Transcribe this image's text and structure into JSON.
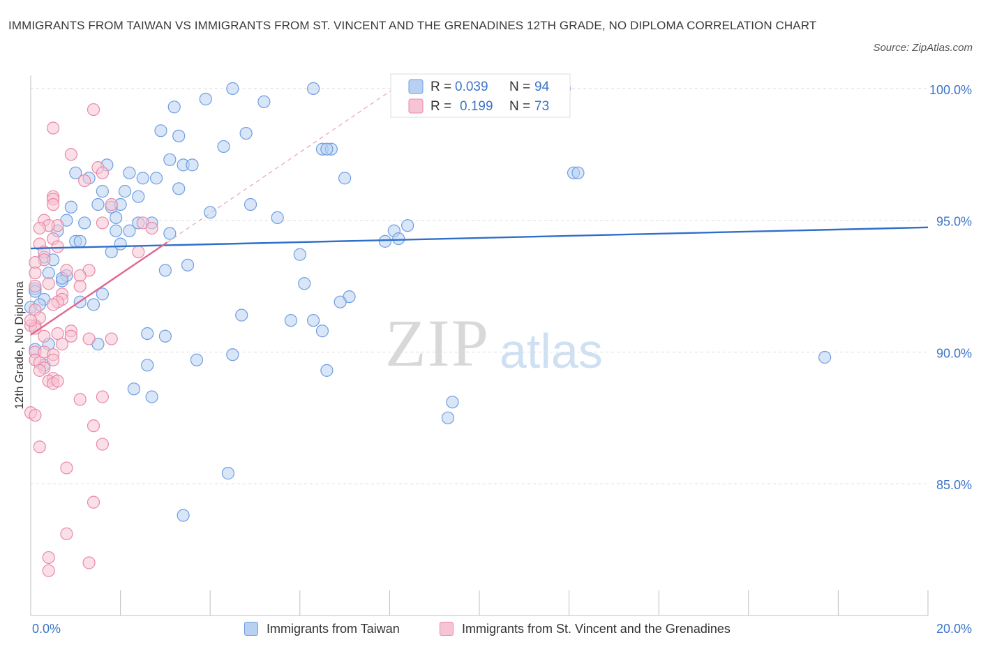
{
  "title": "IMMIGRANTS FROM TAIWAN VS IMMIGRANTS FROM ST. VINCENT AND THE GRENADINES 12TH GRADE, NO DIPLOMA CORRELATION CHART",
  "source": "Source: ZipAtlas.com",
  "colors": {
    "blue_fill": "#b8d1f2",
    "blue_stroke": "#6f9ee0",
    "blue_line": "#2f6fc9",
    "pink_fill": "#f7c4d4",
    "pink_stroke": "#e889a8",
    "pink_line": "#e06690",
    "axis_text": "#3c74c8",
    "grid": "#dcdcdc"
  },
  "legend_stats": {
    "blue": {
      "r_label": "R =",
      "r_value": "0.039",
      "n_label": "N =",
      "n_value": "94"
    },
    "pink": {
      "r_label": "R =",
      "r_value": "0.199",
      "n_label": "N =",
      "n_value": "73"
    }
  },
  "watermark": {
    "zip": "ZIP",
    "atlas": "atlas"
  },
  "chart_data": {
    "type": "scatter",
    "title": "IMMIGRANTS FROM TAIWAN VS IMMIGRANTS FROM ST. VINCENT AND THE GRENADINES 12TH GRADE, NO DIPLOMA CORRELATION CHART",
    "xlabel": "",
    "ylabel": "12th Grade, No Diploma",
    "xlim": [
      0,
      20
    ],
    "ylim": [
      80.0,
      100.5
    ],
    "x_tick_labels": [
      "0.0%",
      "20.0%"
    ],
    "y_ticks": [
      85,
      90,
      95,
      100
    ],
    "y_tick_labels": [
      "85.0%",
      "90.0%",
      "95.0%",
      "100.0%"
    ],
    "grid": true,
    "series": [
      {
        "name": "Immigrants from Taiwan",
        "color": "blue",
        "trend": {
          "x": [
            0,
            20
          ],
          "y": [
            93.93,
            94.73
          ]
        },
        "points": [
          [
            4.5,
            100.0
          ],
          [
            6.3,
            100.0
          ],
          [
            11.9,
            100.0
          ],
          [
            3.9,
            99.6
          ],
          [
            5.2,
            99.5
          ],
          [
            3.2,
            99.3
          ],
          [
            2.9,
            98.4
          ],
          [
            3.3,
            98.2
          ],
          [
            4.8,
            98.3
          ],
          [
            4.3,
            97.8
          ],
          [
            6.5,
            97.7
          ],
          [
            6.7,
            97.7
          ],
          [
            6.6,
            97.7
          ],
          [
            3.1,
            97.3
          ],
          [
            3.4,
            97.1
          ],
          [
            3.6,
            97.1
          ],
          [
            1.7,
            97.1
          ],
          [
            2.2,
            96.8
          ],
          [
            1.0,
            96.8
          ],
          [
            1.3,
            96.6
          ],
          [
            2.5,
            96.6
          ],
          [
            2.8,
            96.6
          ],
          [
            7.0,
            96.6
          ],
          [
            12.1,
            96.8
          ],
          [
            12.2,
            96.8
          ],
          [
            1.6,
            96.1
          ],
          [
            2.1,
            96.1
          ],
          [
            3.3,
            96.2
          ],
          [
            2.4,
            95.9
          ],
          [
            1.5,
            95.6
          ],
          [
            1.8,
            95.5
          ],
          [
            2.0,
            95.6
          ],
          [
            4.9,
            95.6
          ],
          [
            0.9,
            95.5
          ],
          [
            4.0,
            95.3
          ],
          [
            5.5,
            95.1
          ],
          [
            1.9,
            95.1
          ],
          [
            0.8,
            95.0
          ],
          [
            1.2,
            94.9
          ],
          [
            2.4,
            94.9
          ],
          [
            2.7,
            94.9
          ],
          [
            8.4,
            94.8
          ],
          [
            0.6,
            94.6
          ],
          [
            1.9,
            94.6
          ],
          [
            2.2,
            94.6
          ],
          [
            3.1,
            94.5
          ],
          [
            8.1,
            94.6
          ],
          [
            7.9,
            94.2
          ],
          [
            1.0,
            94.2
          ],
          [
            1.1,
            94.2
          ],
          [
            2.0,
            94.1
          ],
          [
            8.2,
            94.3
          ],
          [
            1.8,
            93.8
          ],
          [
            6.0,
            93.7
          ],
          [
            0.3,
            93.6
          ],
          [
            0.5,
            93.5
          ],
          [
            3.5,
            93.3
          ],
          [
            0.4,
            93.0
          ],
          [
            0.8,
            92.9
          ],
          [
            3.0,
            93.1
          ],
          [
            0.7,
            92.7
          ],
          [
            0.7,
            92.8
          ],
          [
            6.1,
            92.6
          ],
          [
            0.1,
            92.4
          ],
          [
            1.6,
            92.2
          ],
          [
            7.1,
            92.1
          ],
          [
            6.9,
            91.9
          ],
          [
            1.1,
            91.9
          ],
          [
            1.4,
            91.8
          ],
          [
            4.7,
            91.4
          ],
          [
            5.8,
            91.2
          ],
          [
            6.3,
            91.2
          ],
          [
            6.5,
            90.8
          ],
          [
            2.6,
            90.7
          ],
          [
            3.0,
            90.6
          ],
          [
            0.4,
            90.3
          ],
          [
            1.5,
            90.3
          ],
          [
            0.1,
            90.1
          ],
          [
            4.5,
            89.9
          ],
          [
            3.7,
            89.7
          ],
          [
            2.6,
            89.5
          ],
          [
            6.6,
            89.3
          ],
          [
            0.3,
            89.5
          ],
          [
            17.7,
            89.8
          ],
          [
            2.3,
            88.6
          ],
          [
            2.7,
            88.3
          ],
          [
            9.4,
            88.1
          ],
          [
            9.3,
            87.5
          ],
          [
            4.4,
            85.4
          ],
          [
            3.4,
            83.8
          ],
          [
            0.0,
            91.7
          ],
          [
            0.3,
            92.0
          ],
          [
            0.2,
            91.8
          ],
          [
            0.1,
            92.3
          ]
        ]
      },
      {
        "name": "Immigrants from St. Vincent and the Grenadines",
        "color": "pink",
        "trend": {
          "x": [
            0.0,
            3.04
          ],
          "y": [
            90.65,
            94.16
          ]
        },
        "points": [
          [
            1.4,
            99.2
          ],
          [
            0.5,
            98.5
          ],
          [
            0.9,
            97.5
          ],
          [
            1.5,
            97.0
          ],
          [
            1.6,
            96.8
          ],
          [
            1.2,
            96.5
          ],
          [
            0.5,
            95.9
          ],
          [
            0.5,
            95.8
          ],
          [
            1.8,
            95.6
          ],
          [
            0.5,
            95.6
          ],
          [
            0.3,
            95.0
          ],
          [
            0.6,
            94.8
          ],
          [
            0.4,
            94.8
          ],
          [
            0.2,
            94.7
          ],
          [
            1.6,
            94.9
          ],
          [
            2.5,
            94.9
          ],
          [
            2.7,
            94.7
          ],
          [
            0.5,
            94.3
          ],
          [
            0.2,
            94.1
          ],
          [
            0.6,
            94.0
          ],
          [
            2.4,
            93.8
          ],
          [
            0.3,
            93.8
          ],
          [
            0.3,
            93.5
          ],
          [
            0.1,
            93.4
          ],
          [
            0.8,
            93.1
          ],
          [
            1.3,
            93.1
          ],
          [
            0.1,
            93.0
          ],
          [
            1.1,
            92.9
          ],
          [
            0.4,
            92.6
          ],
          [
            1.1,
            92.5
          ],
          [
            0.1,
            92.5
          ],
          [
            0.7,
            92.2
          ],
          [
            0.7,
            92.0
          ],
          [
            0.6,
            91.9
          ],
          [
            0.5,
            91.8
          ],
          [
            0.1,
            91.6
          ],
          [
            0.2,
            91.3
          ],
          [
            0.1,
            91.0
          ],
          [
            0.0,
            91.0
          ],
          [
            0.1,
            90.9
          ],
          [
            0.9,
            90.8
          ],
          [
            0.6,
            90.7
          ],
          [
            0.9,
            90.6
          ],
          [
            0.3,
            90.6
          ],
          [
            0.7,
            90.3
          ],
          [
            1.3,
            90.5
          ],
          [
            1.8,
            90.5
          ],
          [
            0.1,
            90.0
          ],
          [
            0.3,
            90.0
          ],
          [
            0.5,
            89.9
          ],
          [
            0.1,
            89.7
          ],
          [
            0.5,
            89.7
          ],
          [
            0.2,
            89.6
          ],
          [
            0.3,
            89.4
          ],
          [
            0.2,
            89.3
          ],
          [
            0.5,
            89.0
          ],
          [
            0.4,
            88.9
          ],
          [
            0.5,
            88.8
          ],
          [
            0.6,
            88.9
          ],
          [
            1.1,
            88.2
          ],
          [
            1.6,
            88.3
          ],
          [
            0.0,
            87.7
          ],
          [
            0.1,
            87.6
          ],
          [
            1.4,
            87.2
          ],
          [
            1.6,
            86.5
          ],
          [
            0.2,
            86.4
          ],
          [
            0.8,
            85.6
          ],
          [
            1.4,
            84.3
          ],
          [
            0.8,
            83.1
          ],
          [
            0.4,
            82.2
          ],
          [
            1.3,
            82.0
          ],
          [
            0.4,
            81.7
          ],
          [
            0.0,
            91.2
          ]
        ]
      }
    ]
  },
  "legend_bottom": {
    "blue": "Immigrants from Taiwan",
    "pink": "Immigrants from St. Vincent and the Grenadines"
  }
}
